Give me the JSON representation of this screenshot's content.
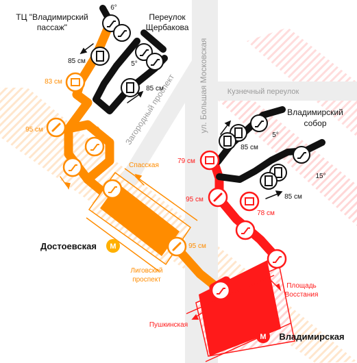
{
  "colors": {
    "orange": "#FF8C00",
    "red": "#FF1A1A",
    "black": "#111111",
    "street": "#EDEDED",
    "street_text": "#9A9A9A",
    "tint_orange": "#FFE3C7",
    "tint_red": "#FFD3D3"
  },
  "streets": {
    "zagorodny": "Загородный проспект",
    "bolshaya_moskovskaya": "ул. Большая Московская",
    "kuznechny": "Кузнечный переулок"
  },
  "exits": {
    "tc": "ТЦ \"Владимирский пассаж\"",
    "pereulok_line1": "Переулок",
    "pereulok_line2": "Щербакова",
    "sobor_line1": "Владимирский",
    "sobor_line2": "собор"
  },
  "angles": {
    "a1": "6°",
    "a2": "5°",
    "a3": "5°",
    "a4": "15°"
  },
  "widths": {
    "w85a": "85 см",
    "w85b": "85 см",
    "w83": "83 см",
    "w95a": "95 см",
    "w85c": "85 см",
    "w85d": "85 см",
    "w79": "79 см",
    "w95b": "95 см",
    "w78": "78 см",
    "w95c": "95 см"
  },
  "platform_labels": {
    "spasskaya": "Спасская",
    "ligovsky_line1": "Лиговский",
    "ligovsky_line2": "проспект",
    "pushkinskaya": "Пушкинская",
    "ploshchad_line1": "Площадь",
    "ploshchad_line2": "Восстания"
  },
  "stations": {
    "dostoevskaya": "Достоевская",
    "vladimirskaya": "Владимирская"
  },
  "icons": {
    "metro_logo": "М"
  }
}
